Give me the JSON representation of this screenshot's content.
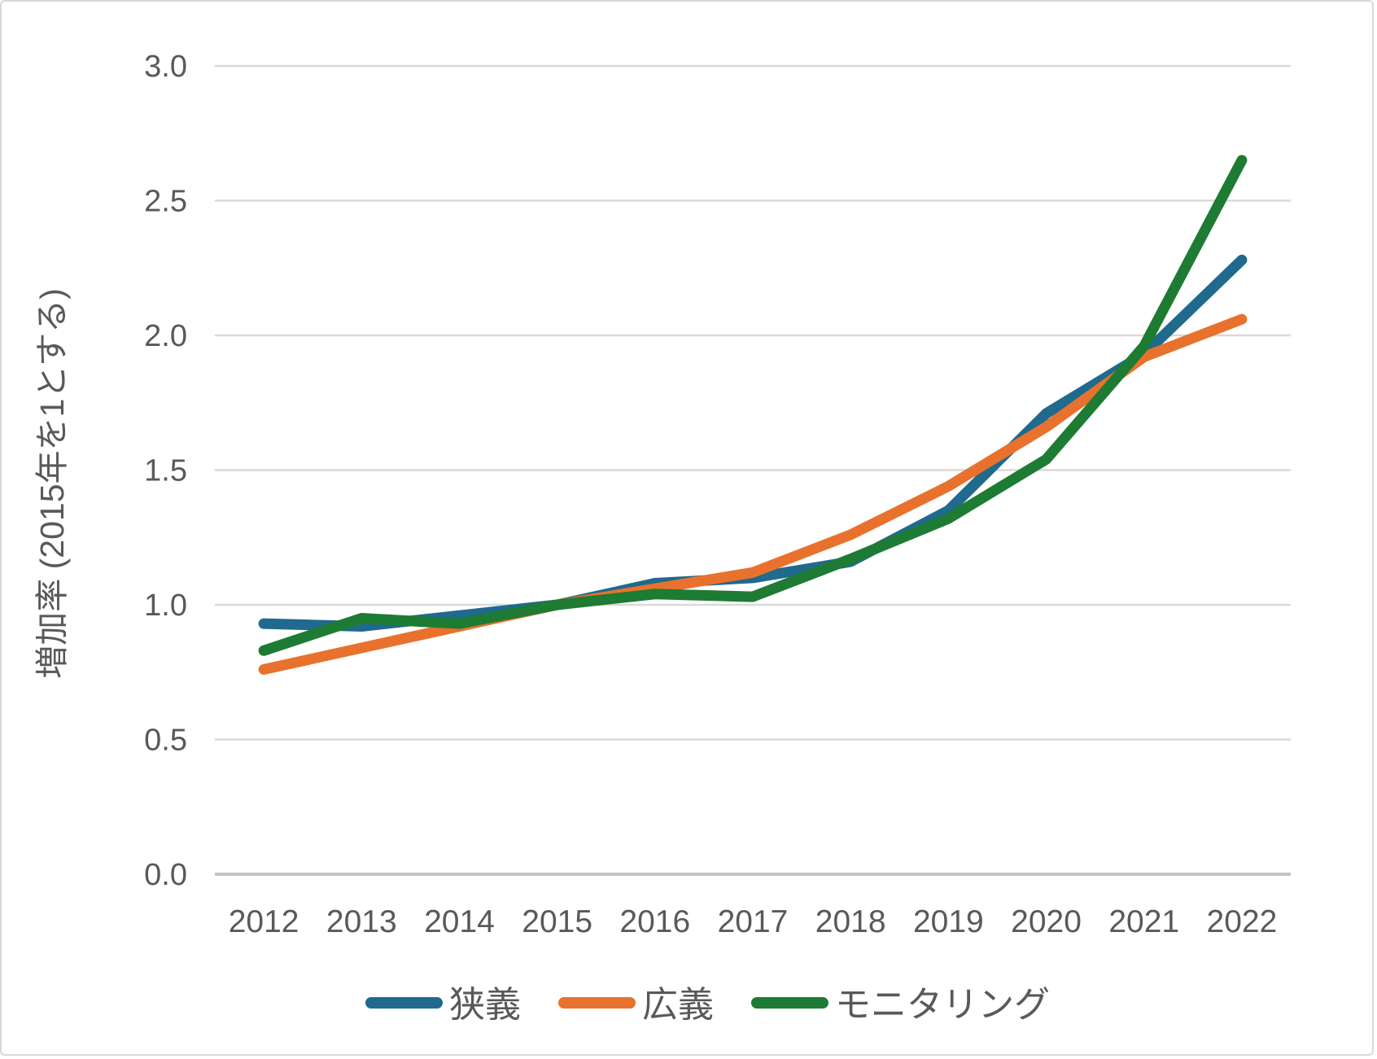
{
  "chart_data": {
    "type": "line",
    "title": "",
    "xlabel": "",
    "ylabel": "増加率 (2015年を1とする)",
    "categories": [
      "2012",
      "2013",
      "2014",
      "2015",
      "2016",
      "2017",
      "2018",
      "2019",
      "2020",
      "2021",
      "2022"
    ],
    "series": [
      {
        "name": "狭義",
        "color": "#1f6a8d",
        "values": [
          0.93,
          0.92,
          0.96,
          1.0,
          1.08,
          1.1,
          1.16,
          1.35,
          1.71,
          1.93,
          2.28
        ]
      },
      {
        "name": "広義",
        "color": "#e8722d",
        "values": [
          0.76,
          0.84,
          0.92,
          1.0,
          1.06,
          1.12,
          1.26,
          1.44,
          1.66,
          1.92,
          2.06
        ]
      },
      {
        "name": "モニタリング",
        "color": "#1e7b33",
        "values": [
          0.83,
          0.95,
          0.93,
          1.0,
          1.04,
          1.03,
          1.17,
          1.32,
          1.54,
          1.96,
          2.65
        ]
      }
    ],
    "ylim": [
      0.0,
      3.0
    ],
    "ytick_step": 0.5,
    "ytick_labels": [
      "0.0",
      "0.5",
      "1.0",
      "1.5",
      "2.0",
      "2.5",
      "3.0"
    ],
    "grid": true,
    "legend_position": "bottom"
  },
  "colors": {
    "gridline": "#d9d9d9",
    "axis_line": "#c3c3c3",
    "tick_text": "#595959",
    "frame_border": "#d8d8d8",
    "background": "#ffffff"
  }
}
